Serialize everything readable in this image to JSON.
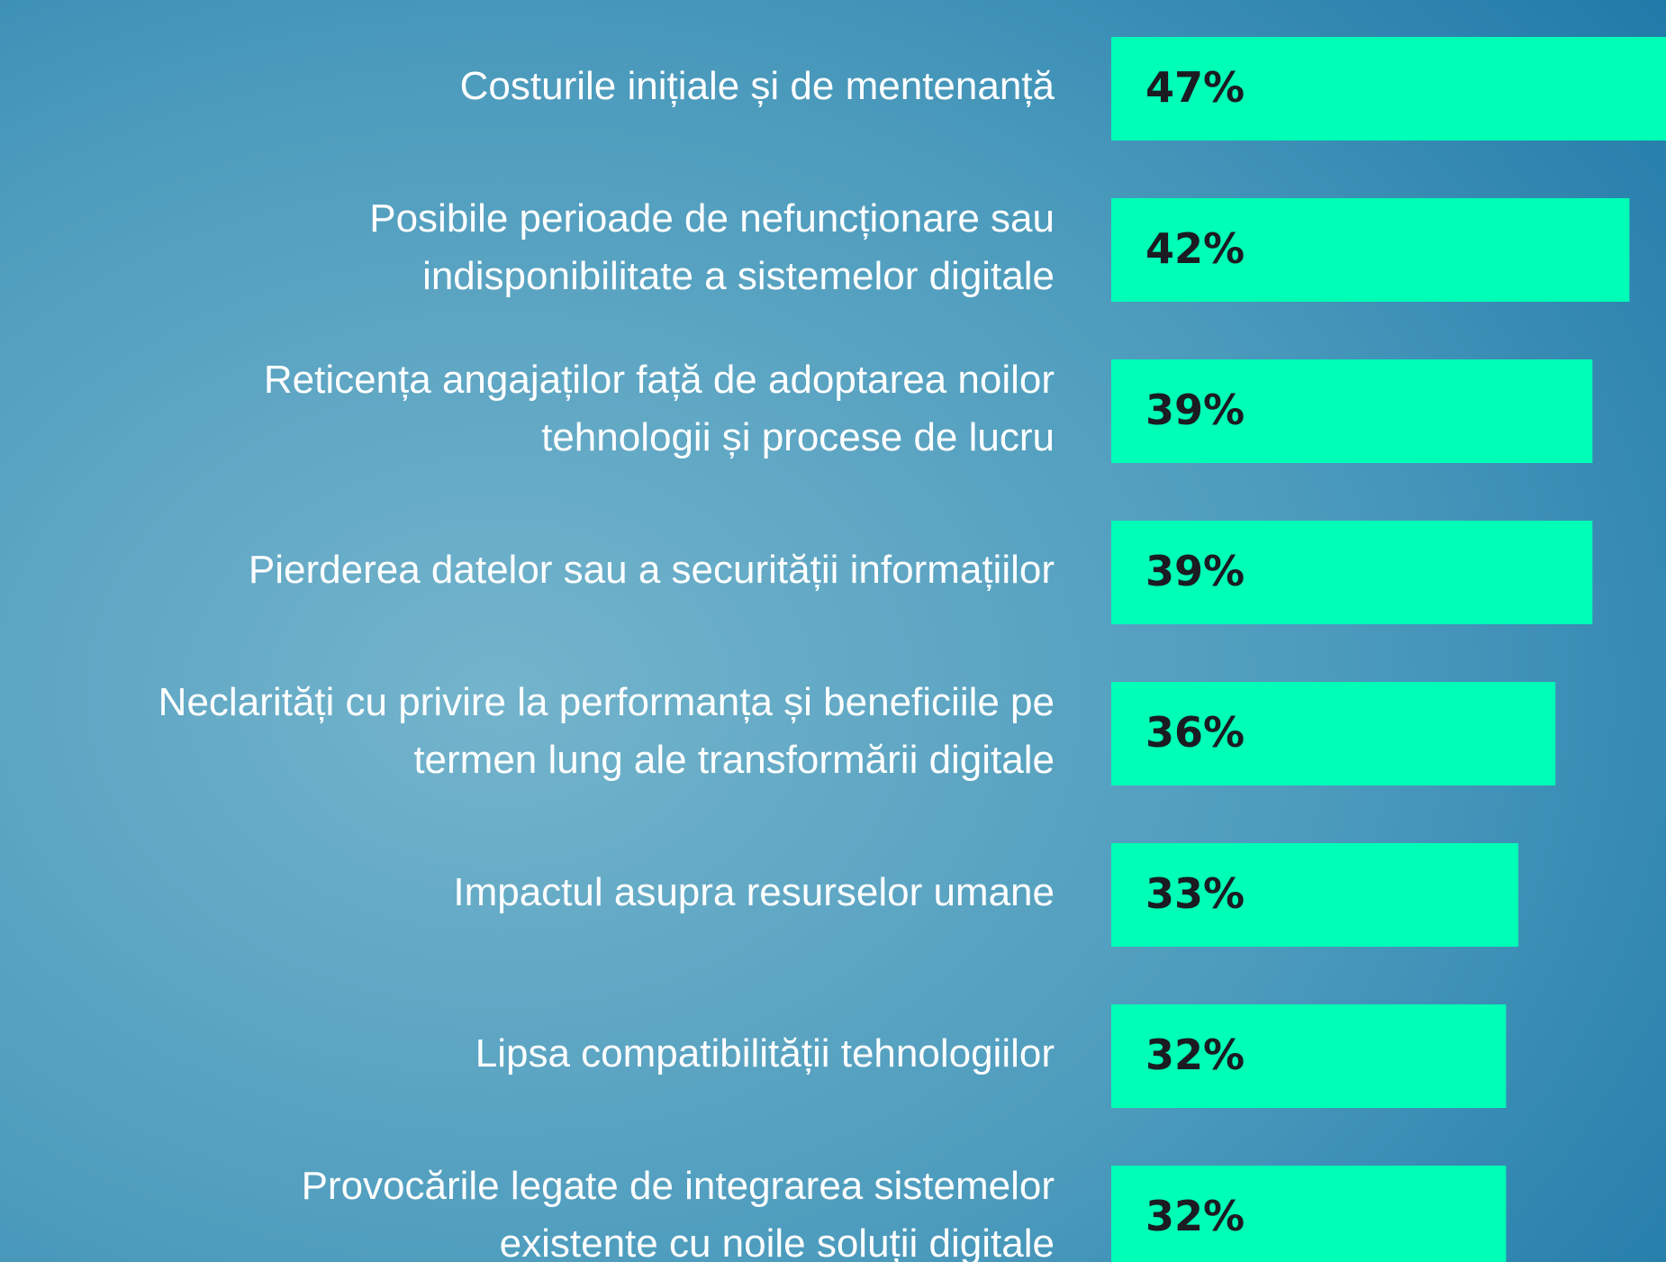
{
  "chart_data": {
    "type": "bar",
    "orientation": "horizontal",
    "color": "#00ffb6",
    "categories": [
      [
        "Costurile inițiale și de mentenanță"
      ],
      [
        "Posibile perioade de nefuncționare sau",
        "indisponibilitate a sistemelor digitale"
      ],
      [
        "Reticența angajaților față de adoptarea noilor",
        "tehnologii și procese de lucru"
      ],
      [
        "Pierderea datelor sau a securității informațiilor"
      ],
      [
        "Neclarități cu privire la performanța și beneficiile pe",
        "termen lung ale transformării digitale"
      ],
      [
        "Impactul asupra resurselor umane"
      ],
      [
        "Lipsa compatibilității tehnologiilor"
      ],
      [
        "Provocările legate de integrarea sistemelor",
        "existente cu noile soluții digitale"
      ]
    ],
    "values": [
      47,
      42,
      39,
      39,
      36,
      33,
      32,
      32
    ],
    "value_labels": [
      "47%",
      "42%",
      "39%",
      "39%",
      "36%",
      "33%",
      "32%",
      "32%"
    ]
  }
}
